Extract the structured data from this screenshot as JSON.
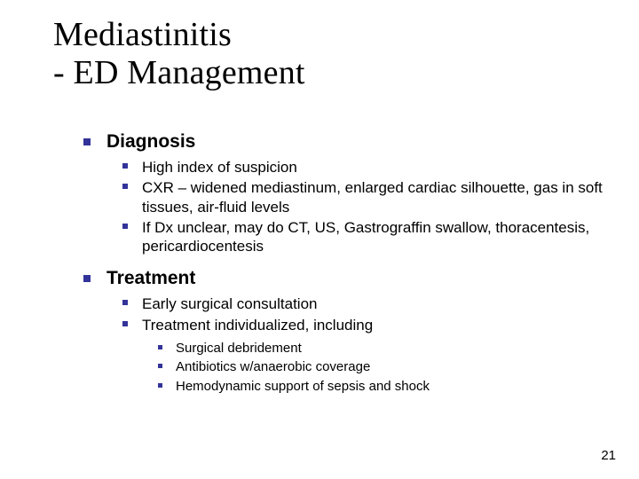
{
  "title_line1": "Mediastinitis",
  "title_line2": " - ED Management",
  "sections": {
    "diagnosis": {
      "heading": "Diagnosis",
      "items": {
        "a": "High index of suspicion",
        "b": "CXR – widened mediastinum, enlarged cardiac silhouette, gas in soft tissues, air-fluid levels",
        "c": "If Dx unclear, may do CT, US, Gastrograffin swallow, thoracentesis, pericardiocentesis"
      }
    },
    "treatment": {
      "heading": "Treatment",
      "items": {
        "a": "Early surgical consultation",
        "b": "Treatment individualized, including"
      },
      "subitems": {
        "a": "Surgical debridement",
        "b": "Antibiotics w/anaerobic coverage",
        "c": "Hemodynamic support of sepsis and shock"
      }
    }
  },
  "page_number": "21",
  "style": {
    "bullet_color": "#333399",
    "title_font": "Times New Roman",
    "body_font": "Verdana",
    "title_fontsize_pt": 38,
    "lvl1_fontsize_pt": 21,
    "lvl2_fontsize_pt": 17,
    "lvl3_fontsize_pt": 15,
    "background": "#ffffff",
    "text_color": "#000000"
  }
}
